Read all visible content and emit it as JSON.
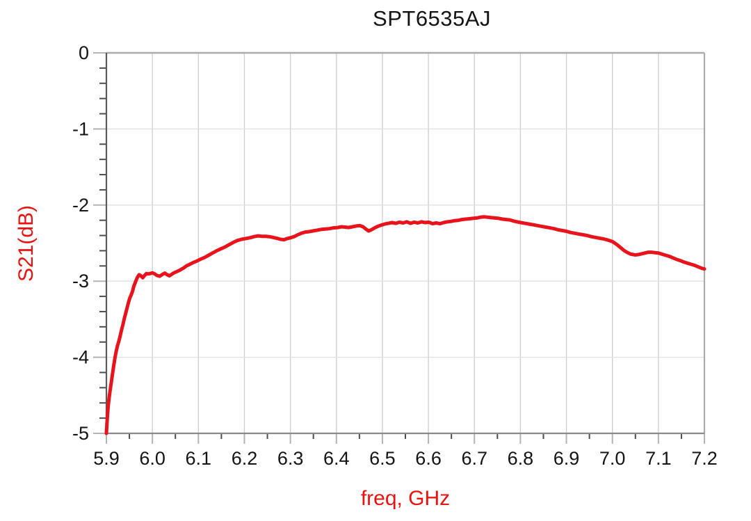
{
  "page": {
    "background": "#ffffff"
  },
  "chart_data": {
    "type": "line",
    "title": "SPT6535AJ",
    "xlabel": "freq, GHz",
    "ylabel": "S21(dB)",
    "xlim": [
      5.9,
      7.2
    ],
    "ylim": [
      -5,
      0
    ],
    "x_major_step": 0.1,
    "x_minor_step": 0.05,
    "y_major_step": 1.0,
    "y_minor_step": 0.2,
    "x_tick_labels": [
      "5.9",
      "6.0",
      "6.1",
      "6.2",
      "6.3",
      "6.4",
      "6.5",
      "6.6",
      "6.7",
      "6.8",
      "6.9",
      "7.0",
      "7.1",
      "7.2"
    ],
    "y_tick_labels": [
      "0",
      "-1",
      "-2",
      "-3",
      "-4",
      "-5"
    ],
    "grid": true,
    "legend": "none",
    "colors": {
      "trace": "#e8131b",
      "axis_label": "#e8120f",
      "title": "#141414",
      "tick_label": "#141414",
      "grid_vertical": "#cccccc",
      "grid_horizontal": "#e0e0e0",
      "frame_top": "#ababab",
      "frame_right": "#ababab",
      "frame_bottom": "#8a8a8a",
      "frame_left": "#5a5a5a",
      "major_tick": "#b3b3b3",
      "minor_tick": "#4d4d4d"
    },
    "series": [
      {
        "name": "S21",
        "points": [
          [
            5.9,
            -5.0
          ],
          [
            5.902,
            -4.8
          ],
          [
            5.904,
            -4.64
          ],
          [
            5.906,
            -4.53
          ],
          [
            5.908,
            -4.44
          ],
          [
            5.91,
            -4.36
          ],
          [
            5.9125,
            -4.25
          ],
          [
            5.915,
            -4.15
          ],
          [
            5.918,
            -4.03
          ],
          [
            5.921,
            -3.93
          ],
          [
            5.924,
            -3.85
          ],
          [
            5.927,
            -3.79
          ],
          [
            5.93,
            -3.72
          ],
          [
            5.933,
            -3.64
          ],
          [
            5.936,
            -3.57
          ],
          [
            5.939,
            -3.49
          ],
          [
            5.942,
            -3.42
          ],
          [
            5.945,
            -3.35
          ],
          [
            5.948,
            -3.28
          ],
          [
            5.951,
            -3.22
          ],
          [
            5.954,
            -3.18
          ],
          [
            5.957,
            -3.13
          ],
          [
            5.96,
            -3.06
          ],
          [
            5.964,
            -3.0
          ],
          [
            5.967,
            -2.955
          ],
          [
            5.971,
            -2.915
          ],
          [
            5.975,
            -2.93
          ],
          [
            5.979,
            -2.955
          ],
          [
            5.983,
            -2.925
          ],
          [
            5.987,
            -2.9
          ],
          [
            5.991,
            -2.905
          ],
          [
            5.995,
            -2.9
          ],
          [
            6.0,
            -2.89
          ],
          [
            6.005,
            -2.905
          ],
          [
            6.01,
            -2.925
          ],
          [
            6.016,
            -2.935
          ],
          [
            6.022,
            -2.91
          ],
          [
            6.027,
            -2.895
          ],
          [
            6.032,
            -2.915
          ],
          [
            6.037,
            -2.93
          ],
          [
            6.042,
            -2.91
          ],
          [
            6.047,
            -2.89
          ],
          [
            6.053,
            -2.875
          ],
          [
            6.06,
            -2.855
          ],
          [
            6.067,
            -2.83
          ],
          [
            6.074,
            -2.8
          ],
          [
            6.081,
            -2.78
          ],
          [
            6.089,
            -2.755
          ],
          [
            6.097,
            -2.735
          ],
          [
            6.105,
            -2.71
          ],
          [
            6.113,
            -2.69
          ],
          [
            6.122,
            -2.66
          ],
          [
            6.131,
            -2.63
          ],
          [
            6.14,
            -2.6
          ],
          [
            6.149,
            -2.575
          ],
          [
            6.158,
            -2.55
          ],
          [
            6.167,
            -2.52
          ],
          [
            6.176,
            -2.49
          ],
          [
            6.185,
            -2.465
          ],
          [
            6.194,
            -2.45
          ],
          [
            6.203,
            -2.44
          ],
          [
            6.212,
            -2.43
          ],
          [
            6.221,
            -2.415
          ],
          [
            6.23,
            -2.405
          ],
          [
            6.238,
            -2.41
          ],
          [
            6.246,
            -2.41
          ],
          [
            6.254,
            -2.415
          ],
          [
            6.262,
            -2.425
          ],
          [
            6.27,
            -2.435
          ],
          [
            6.278,
            -2.45
          ],
          [
            6.286,
            -2.455
          ],
          [
            6.293,
            -2.44
          ],
          [
            6.3,
            -2.43
          ],
          [
            6.308,
            -2.415
          ],
          [
            6.316,
            -2.39
          ],
          [
            6.324,
            -2.37
          ],
          [
            6.332,
            -2.355
          ],
          [
            6.34,
            -2.35
          ],
          [
            6.349,
            -2.34
          ],
          [
            6.358,
            -2.33
          ],
          [
            6.367,
            -2.32
          ],
          [
            6.376,
            -2.315
          ],
          [
            6.385,
            -2.31
          ],
          [
            6.394,
            -2.3
          ],
          [
            6.403,
            -2.295
          ],
          [
            6.411,
            -2.285
          ],
          [
            6.419,
            -2.29
          ],
          [
            6.427,
            -2.295
          ],
          [
            6.435,
            -2.285
          ],
          [
            6.443,
            -2.275
          ],
          [
            6.451,
            -2.27
          ],
          [
            6.458,
            -2.285
          ],
          [
            6.464,
            -2.315
          ],
          [
            6.47,
            -2.34
          ],
          [
            6.476,
            -2.325
          ],
          [
            6.483,
            -2.3
          ],
          [
            6.49,
            -2.28
          ],
          [
            6.497,
            -2.265
          ],
          [
            6.505,
            -2.25
          ],
          [
            6.513,
            -2.24
          ],
          [
            6.521,
            -2.23
          ],
          [
            6.529,
            -2.24
          ],
          [
            6.537,
            -2.225
          ],
          [
            6.545,
            -2.235
          ],
          [
            6.553,
            -2.22
          ],
          [
            6.561,
            -2.24
          ],
          [
            6.569,
            -2.225
          ],
          [
            6.577,
            -2.235
          ],
          [
            6.585,
            -2.22
          ],
          [
            6.593,
            -2.23
          ],
          [
            6.601,
            -2.225
          ],
          [
            6.609,
            -2.245
          ],
          [
            6.617,
            -2.235
          ],
          [
            6.625,
            -2.245
          ],
          [
            6.633,
            -2.23
          ],
          [
            6.641,
            -2.22
          ],
          [
            6.649,
            -2.215
          ],
          [
            6.657,
            -2.205
          ],
          [
            6.665,
            -2.2
          ],
          [
            6.673,
            -2.19
          ],
          [
            6.681,
            -2.185
          ],
          [
            6.689,
            -2.18
          ],
          [
            6.697,
            -2.175
          ],
          [
            6.705,
            -2.17
          ],
          [
            6.713,
            -2.16
          ],
          [
            6.721,
            -2.155
          ],
          [
            6.729,
            -2.16
          ],
          [
            6.737,
            -2.165
          ],
          [
            6.745,
            -2.17
          ],
          [
            6.753,
            -2.175
          ],
          [
            6.761,
            -2.185
          ],
          [
            6.769,
            -2.19
          ],
          [
            6.777,
            -2.195
          ],
          [
            6.785,
            -2.21
          ],
          [
            6.793,
            -2.22
          ],
          [
            6.801,
            -2.23
          ],
          [
            6.81,
            -2.24
          ],
          [
            6.819,
            -2.25
          ],
          [
            6.828,
            -2.26
          ],
          [
            6.837,
            -2.27
          ],
          [
            6.846,
            -2.28
          ],
          [
            6.855,
            -2.29
          ],
          [
            6.864,
            -2.3
          ],
          [
            6.873,
            -2.31
          ],
          [
            6.882,
            -2.325
          ],
          [
            6.891,
            -2.335
          ],
          [
            6.9,
            -2.345
          ],
          [
            6.909,
            -2.36
          ],
          [
            6.918,
            -2.37
          ],
          [
            6.927,
            -2.38
          ],
          [
            6.936,
            -2.39
          ],
          [
            6.945,
            -2.4
          ],
          [
            6.954,
            -2.415
          ],
          [
            6.963,
            -2.425
          ],
          [
            6.972,
            -2.435
          ],
          [
            6.981,
            -2.445
          ],
          [
            6.99,
            -2.46
          ],
          [
            7.0,
            -2.48
          ],
          [
            7.005,
            -2.5
          ],
          [
            7.01,
            -2.52
          ],
          [
            7.015,
            -2.545
          ],
          [
            7.02,
            -2.57
          ],
          [
            7.025,
            -2.595
          ],
          [
            7.03,
            -2.615
          ],
          [
            7.035,
            -2.63
          ],
          [
            7.04,
            -2.645
          ],
          [
            7.045,
            -2.65
          ],
          [
            7.05,
            -2.655
          ],
          [
            7.057,
            -2.65
          ],
          [
            7.064,
            -2.64
          ],
          [
            7.071,
            -2.63
          ],
          [
            7.078,
            -2.62
          ],
          [
            7.085,
            -2.62
          ],
          [
            7.092,
            -2.625
          ],
          [
            7.1,
            -2.63
          ],
          [
            7.108,
            -2.645
          ],
          [
            7.116,
            -2.66
          ],
          [
            7.124,
            -2.675
          ],
          [
            7.132,
            -2.695
          ],
          [
            7.14,
            -2.715
          ],
          [
            7.148,
            -2.73
          ],
          [
            7.156,
            -2.75
          ],
          [
            7.164,
            -2.765
          ],
          [
            7.172,
            -2.78
          ],
          [
            7.18,
            -2.795
          ],
          [
            7.188,
            -2.815
          ],
          [
            7.194,
            -2.83
          ],
          [
            7.2,
            -2.84
          ]
        ]
      }
    ]
  }
}
